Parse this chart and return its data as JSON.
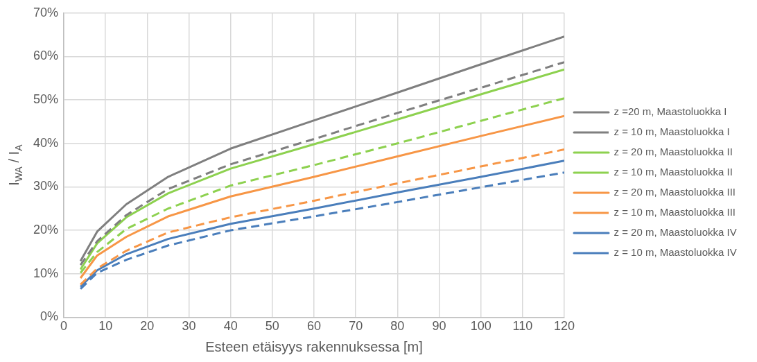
{
  "chart_data": {
    "type": "line",
    "xlabel": "Esteen etäisyys rakennuksessa [m]",
    "ylabel": "I$_{WA}$ / I$_{A}$",
    "x": [
      4,
      8,
      15,
      25,
      40,
      60,
      80,
      100,
      120
    ],
    "series": [
      {
        "name": "z =20 m, Maastoluokka I",
        "color": "#7f7f7f",
        "line_style": "solid",
        "values": [
          12.9,
          19.7,
          26,
          32.3,
          38.8,
          45.3,
          51.7,
          58.2,
          64.6
        ]
      },
      {
        "name": "z = 10 m, Maastoluokka I",
        "color": "#7f7f7f",
        "line_style": "dashed",
        "values": [
          12,
          17.5,
          23.5,
          29.5,
          35.2,
          41,
          47,
          52.8,
          58.7
        ]
      },
      {
        "name": "z = 20 m, Maastoluokka II",
        "color": "#8dd14f",
        "line_style": "solid",
        "values": [
          11,
          17,
          23,
          28.5,
          34.2,
          39.8,
          45.5,
          51.3,
          57
        ]
      },
      {
        "name": "z = 10 m, Maastoluokka II",
        "color": "#8dd14f",
        "line_style": "dashed",
        "values": [
          10.2,
          15,
          20.3,
          25,
          30.3,
          35,
          40,
          45.2,
          50.4
        ]
      },
      {
        "name": "z = 20 m, Maastoluokka III",
        "color": "#f79646",
        "line_style": "solid",
        "values": [
          9,
          14.2,
          18.5,
          23.2,
          27.8,
          32.3,
          37,
          41.7,
          46.3
        ]
      },
      {
        "name": "z = 10 m, Maastoluokka III",
        "color": "#f79646",
        "line_style": "dashed",
        "values": [
          7.5,
          11.2,
          15.3,
          19.5,
          23,
          26.8,
          30.8,
          34.7,
          38.6
        ]
      },
      {
        "name": "z = 20 m, Maastoluokka IV",
        "color": "#4a7ebb",
        "line_style": "solid",
        "values": [
          7,
          10.8,
          14.5,
          18,
          21.5,
          25,
          28.7,
          32.3,
          36
        ]
      },
      {
        "name": "z = 10 m, Maastoluokka IV",
        "color": "#4a7ebb",
        "line_style": "dashed",
        "values": [
          6.5,
          10.2,
          13.2,
          16.5,
          20,
          23.2,
          26.5,
          29.9,
          33.3
        ]
      }
    ],
    "xlim": [
      0,
      120
    ],
    "xticks": [
      0,
      10,
      20,
      30,
      40,
      50,
      60,
      70,
      80,
      90,
      100,
      110,
      120
    ],
    "ylim": [
      0,
      70
    ],
    "yticks": [
      {
        "value": 0,
        "label": "0%"
      },
      {
        "value": 10,
        "label": "10%"
      },
      {
        "value": 20,
        "label": "20%"
      },
      {
        "value": 30,
        "label": "30%"
      },
      {
        "value": 40,
        "label": "40%"
      },
      {
        "value": 50,
        "label": "50%"
      },
      {
        "value": 60,
        "label": "60%"
      },
      {
        "value": 70,
        "label": "70%"
      }
    ],
    "grid": true,
    "legend": "right",
    "marker": "none"
  }
}
